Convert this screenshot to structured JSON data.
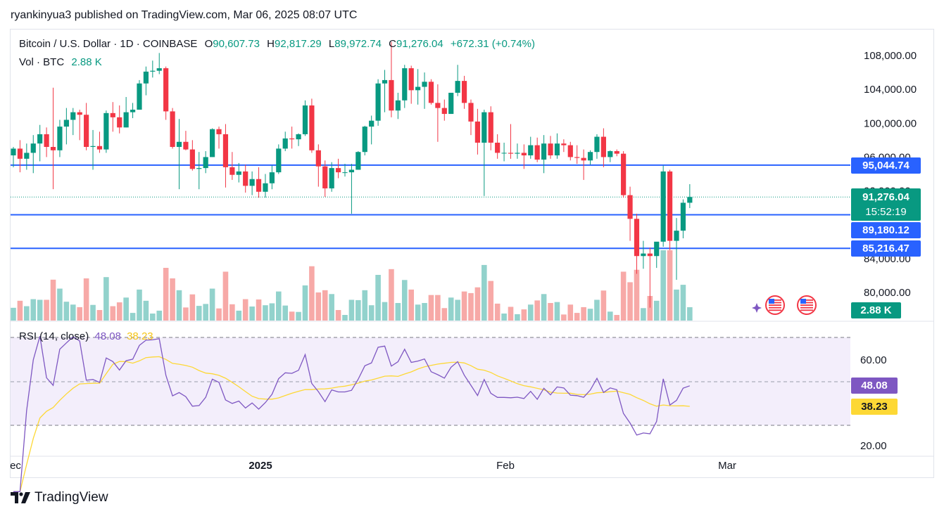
{
  "header": {
    "publish_line": "ryankinyua3 published on TradingView.com, Mar 06, 2025 08:07 UTC"
  },
  "legend": {
    "symbol": "Bitcoin / U.S. Dollar · 1D · COINBASE",
    "open_label": "O",
    "open": "90,607.73",
    "high_label": "H",
    "high": "92,817.29",
    "low_label": "L",
    "low": "89,972.74",
    "close_label": "C",
    "close": "91,276.04",
    "change": "+672.31 (+0.74%)",
    "vol_label": "Vol · BTC",
    "vol_value": "2.88 K"
  },
  "price_tags": {
    "level_1": "95,044.74",
    "current": "91,276.04",
    "countdown": "15:52:19",
    "level_2": "89,180.12",
    "level_3": "85,216.47",
    "volume": "2.88 K",
    "rsi": "48.08",
    "rsi_ma": "38.23"
  },
  "rsi_legend": {
    "label": "RSI (14, close)",
    "value": "48.08",
    "ma_value": "38.23"
  },
  "footer": {
    "brand": "TradingView"
  },
  "colors": {
    "up": "#089981",
    "down": "#f23645",
    "vol_up": "#92d2cc",
    "vol_down": "#f7a9a7",
    "level": "#2962ff",
    "rsi_line": "#7e57c2",
    "rsi_ma": "#fdd835",
    "rsi_band": "#f3eefb"
  },
  "chart_data": {
    "type": "candlestick",
    "price_axis": {
      "ticks": [
        "108,000.00",
        "104,000.00",
        "100,000.00",
        "96,000.00",
        "92,000.00",
        "84,000.00",
        "80,000.00"
      ]
    },
    "time_axis": {
      "ticks": [
        "ec",
        "2025",
        "Feb",
        "Mar"
      ]
    },
    "horizontal_levels": [
      95044.74,
      89180.12,
      85216.47
    ],
    "candles": [
      {
        "o": 96200,
        "h": 97200,
        "l": 94800,
        "c": 97000
      },
      {
        "o": 97000,
        "h": 98000,
        "l": 94200,
        "c": 95800
      },
      {
        "o": 95800,
        "h": 97600,
        "l": 94500,
        "c": 96500
      },
      {
        "o": 96500,
        "h": 98600,
        "l": 94100,
        "c": 97600
      },
      {
        "o": 97600,
        "h": 99800,
        "l": 95500,
        "c": 98700
      },
      {
        "o": 98700,
        "h": 99500,
        "l": 96000,
        "c": 97200
      },
      {
        "o": 97200,
        "h": 104200,
        "l": 92200,
        "c": 96800
      },
      {
        "o": 96800,
        "h": 100400,
        "l": 96000,
        "c": 99600
      },
      {
        "o": 99600,
        "h": 101800,
        "l": 97500,
        "c": 100400
      },
      {
        "o": 100400,
        "h": 101800,
        "l": 98600,
        "c": 101300
      },
      {
        "o": 101300,
        "h": 101600,
        "l": 98000,
        "c": 101000
      },
      {
        "o": 101000,
        "h": 102400,
        "l": 96800,
        "c": 97200
      },
      {
        "o": 97200,
        "h": 99200,
        "l": 94500,
        "c": 97300
      },
      {
        "o": 97300,
        "h": 99000,
        "l": 96500,
        "c": 96900
      },
      {
        "o": 96900,
        "h": 101500,
        "l": 96500,
        "c": 101200
      },
      {
        "o": 101200,
        "h": 102500,
        "l": 99000,
        "c": 100700
      },
      {
        "o": 100700,
        "h": 102100,
        "l": 98800,
        "c": 99500
      },
      {
        "o": 99500,
        "h": 103100,
        "l": 99500,
        "c": 101300
      },
      {
        "o": 101300,
        "h": 102400,
        "l": 100600,
        "c": 101600
      },
      {
        "o": 101600,
        "h": 105100,
        "l": 101600,
        "c": 104700
      },
      {
        "o": 104700,
        "h": 106700,
        "l": 103300,
        "c": 106100
      },
      {
        "o": 106100,
        "h": 107400,
        "l": 105400,
        "c": 106200
      },
      {
        "o": 106200,
        "h": 108300,
        "l": 105800,
        "c": 106500
      },
      {
        "o": 106500,
        "h": 106700,
        "l": 100400,
        "c": 101400
      },
      {
        "o": 101400,
        "h": 101800,
        "l": 97000,
        "c": 97200
      },
      {
        "o": 97200,
        "h": 100500,
        "l": 92200,
        "c": 97800
      },
      {
        "o": 97800,
        "h": 99100,
        "l": 96800,
        "c": 96900
      },
      {
        "o": 96900,
        "h": 98000,
        "l": 94400,
        "c": 94600
      },
      {
        "o": 94600,
        "h": 96600,
        "l": 92200,
        "c": 94700
      },
      {
        "o": 94700,
        "h": 96700,
        "l": 94100,
        "c": 96000
      },
      {
        "o": 96000,
        "h": 99400,
        "l": 96000,
        "c": 99300
      },
      {
        "o": 99300,
        "h": 99600,
        "l": 97000,
        "c": 98700
      },
      {
        "o": 98700,
        "h": 99900,
        "l": 92400,
        "c": 94800
      },
      {
        "o": 94800,
        "h": 96600,
        "l": 93300,
        "c": 93900
      },
      {
        "o": 93900,
        "h": 95300,
        "l": 93000,
        "c": 94300
      },
      {
        "o": 94300,
        "h": 95100,
        "l": 91800,
        "c": 92600
      },
      {
        "o": 92600,
        "h": 94300,
        "l": 91500,
        "c": 93400
      },
      {
        "o": 93400,
        "h": 94800,
        "l": 91200,
        "c": 91900
      },
      {
        "o": 91900,
        "h": 94000,
        "l": 91200,
        "c": 92900
      },
      {
        "o": 92900,
        "h": 95000,
        "l": 92200,
        "c": 94200
      },
      {
        "o": 94200,
        "h": 97500,
        "l": 94000,
        "c": 97000
      },
      {
        "o": 97000,
        "h": 99000,
        "l": 96700,
        "c": 98200
      },
      {
        "o": 98200,
        "h": 99600,
        "l": 97000,
        "c": 98100
      },
      {
        "o": 98100,
        "h": 98800,
        "l": 97300,
        "c": 98700
      },
      {
        "o": 98700,
        "h": 102700,
        "l": 98500,
        "c": 102100
      },
      {
        "o": 102100,
        "h": 102900,
        "l": 96500,
        "c": 96800
      },
      {
        "o": 96800,
        "h": 97500,
        "l": 92500,
        "c": 94900
      },
      {
        "o": 94900,
        "h": 95600,
        "l": 91300,
        "c": 92300
      },
      {
        "o": 92300,
        "h": 95400,
        "l": 91900,
        "c": 94700
      },
      {
        "o": 94700,
        "h": 95800,
        "l": 93500,
        "c": 94200
      },
      {
        "o": 94200,
        "h": 95200,
        "l": 93700,
        "c": 94200
      },
      {
        "o": 94200,
        "h": 95200,
        "l": 89300,
        "c": 94500
      },
      {
        "o": 94500,
        "h": 96700,
        "l": 94500,
        "c": 96600
      },
      {
        "o": 96600,
        "h": 99700,
        "l": 96200,
        "c": 99600
      },
      {
        "o": 99600,
        "h": 100900,
        "l": 97500,
        "c": 100300
      },
      {
        "o": 100300,
        "h": 105200,
        "l": 99700,
        "c": 104700
      },
      {
        "o": 104700,
        "h": 106300,
        "l": 101300,
        "c": 105100
      },
      {
        "o": 105100,
        "h": 109600,
        "l": 100700,
        "c": 101500
      },
      {
        "o": 101500,
        "h": 103600,
        "l": 100500,
        "c": 102700
      },
      {
        "o": 102700,
        "h": 106900,
        "l": 101800,
        "c": 106500
      },
      {
        "o": 106500,
        "h": 106800,
        "l": 102300,
        "c": 103900
      },
      {
        "o": 103900,
        "h": 106400,
        "l": 102200,
        "c": 104300
      },
      {
        "o": 104300,
        "h": 106000,
        "l": 101700,
        "c": 104900
      },
      {
        "o": 104900,
        "h": 105200,
        "l": 102200,
        "c": 102400
      },
      {
        "o": 102400,
        "h": 104600,
        "l": 97800,
        "c": 101800
      },
      {
        "o": 101800,
        "h": 102800,
        "l": 100300,
        "c": 101100
      },
      {
        "o": 101100,
        "h": 103300,
        "l": 101100,
        "c": 103600
      },
      {
        "o": 103600,
        "h": 106900,
        "l": 103200,
        "c": 105000
      },
      {
        "o": 105000,
        "h": 105600,
        "l": 101700,
        "c": 102400
      },
      {
        "o": 102400,
        "h": 102800,
        "l": 98600,
        "c": 100200
      },
      {
        "o": 100200,
        "h": 101700,
        "l": 96300,
        "c": 97700
      },
      {
        "o": 97700,
        "h": 101600,
        "l": 91400,
        "c": 101300
      },
      {
        "o": 101300,
        "h": 102000,
        "l": 96800,
        "c": 97700
      },
      {
        "o": 97700,
        "h": 98700,
        "l": 95800,
        "c": 96500
      },
      {
        "o": 96500,
        "h": 97700,
        "l": 95500,
        "c": 96500
      },
      {
        "o": 96500,
        "h": 99900,
        "l": 95800,
        "c": 96400
      },
      {
        "o": 96400,
        "h": 97600,
        "l": 95800,
        "c": 96500
      },
      {
        "o": 96500,
        "h": 97500,
        "l": 94600,
        "c": 96200
      },
      {
        "o": 96200,
        "h": 98400,
        "l": 95800,
        "c": 97400
      },
      {
        "o": 97400,
        "h": 98300,
        "l": 95400,
        "c": 95700
      },
      {
        "o": 95700,
        "h": 98600,
        "l": 94100,
        "c": 97600
      },
      {
        "o": 97600,
        "h": 98500,
        "l": 95800,
        "c": 96200
      },
      {
        "o": 96200,
        "h": 98800,
        "l": 95800,
        "c": 97600
      },
      {
        "o": 97600,
        "h": 98100,
        "l": 96600,
        "c": 97400
      },
      {
        "o": 97400,
        "h": 97800,
        "l": 95600,
        "c": 96000
      },
      {
        "o": 96000,
        "h": 97400,
        "l": 95200,
        "c": 95900
      },
      {
        "o": 95900,
        "h": 96900,
        "l": 93300,
        "c": 95600
      },
      {
        "o": 95600,
        "h": 96800,
        "l": 95100,
        "c": 96600
      },
      {
        "o": 96600,
        "h": 98700,
        "l": 95800,
        "c": 98400
      },
      {
        "o": 98400,
        "h": 99400,
        "l": 94800,
        "c": 96000
      },
      {
        "o": 96000,
        "h": 96800,
        "l": 95400,
        "c": 96700
      },
      {
        "o": 96700,
        "h": 96900,
        "l": 96100,
        "c": 96400
      },
      {
        "o": 96400,
        "h": 96700,
        "l": 91200,
        "c": 91500
      },
      {
        "o": 91500,
        "h": 92500,
        "l": 86100,
        "c": 88700
      },
      {
        "o": 88700,
        "h": 89300,
        "l": 82200,
        "c": 84300
      },
      {
        "o": 84300,
        "h": 86100,
        "l": 82800,
        "c": 84600
      },
      {
        "o": 84600,
        "h": 85300,
        "l": 78200,
        "c": 84300
      },
      {
        "o": 84300,
        "h": 85700,
        "l": 82900,
        "c": 86000
      },
      {
        "o": 86000,
        "h": 95000,
        "l": 85400,
        "c": 94300
      },
      {
        "o": 94300,
        "h": 94500,
        "l": 85000,
        "c": 86100
      },
      {
        "o": 86100,
        "h": 88800,
        "l": 81500,
        "c": 87300
      },
      {
        "o": 87300,
        "h": 91000,
        "l": 86400,
        "c": 90600
      },
      {
        "o": 90600,
        "h": 92800,
        "l": 89970,
        "c": 91276
      }
    ]
  }
}
